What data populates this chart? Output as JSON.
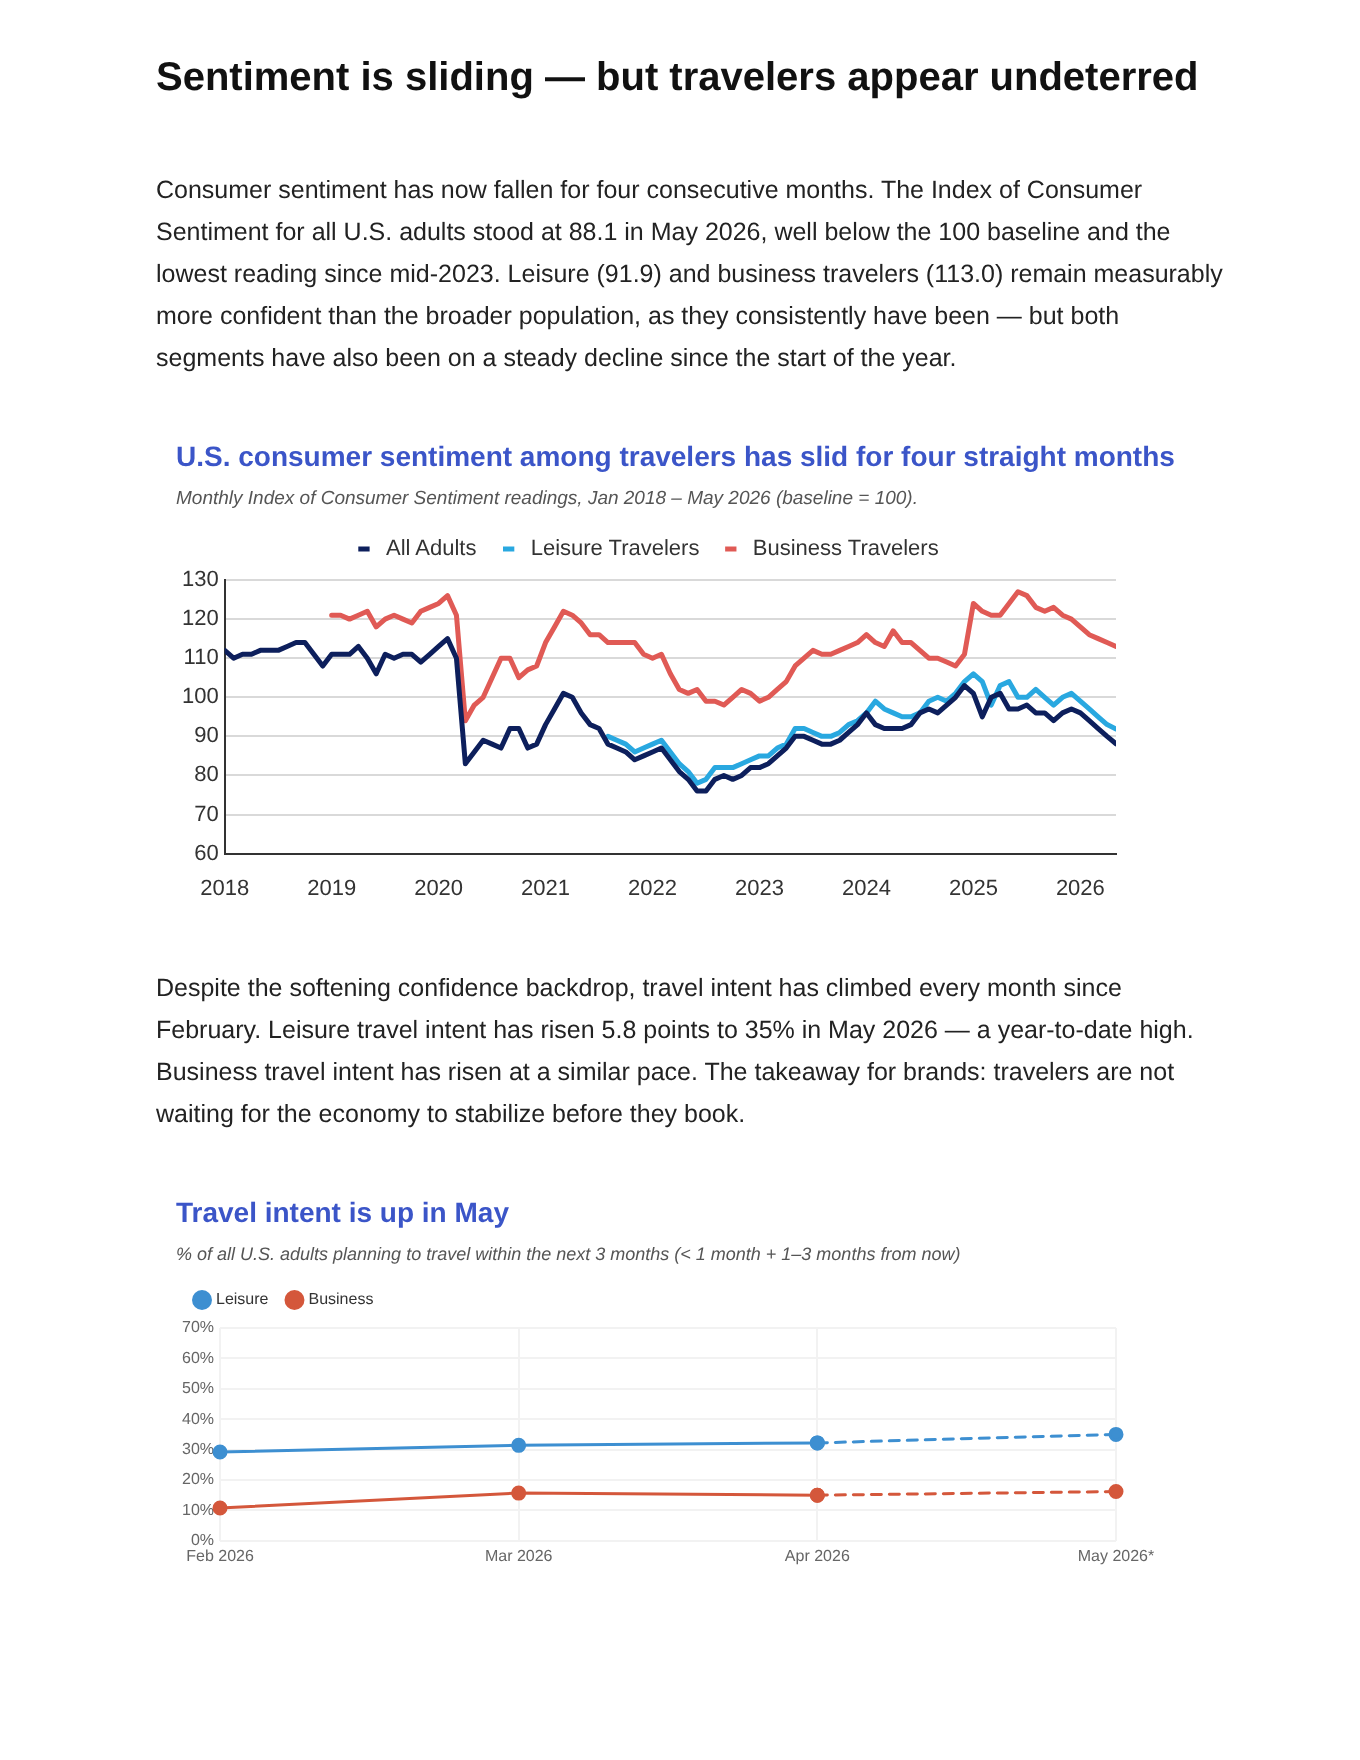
{
  "chart_data": [
    {
      "type": "line",
      "annotations": [
        "Sentiment is sliding — but travelers appear undeterred",
        "Consumer sentiment has now fallen for four consecutive months. The Index of Consumer Sentiment for all U.S. adults stood at 88.1 in May 2026, well below the 100 baseline and the lowest reading since mid-2023. Leisure (91.9) and business travelers (113.0) remain measurably more confident than the broader population, as they consistently have been — but both segments have also been on a steady decline since the start of the year."
      ],
      "title": "U.S. consumer sentiment among travelers has slid for four straight months",
      "subtitle": "Monthly Index of Consumer Sentiment readings, Jan 2018 – May 2026 (baseline = 100).",
      "x": [
        "2018-01",
        "2018-02",
        "2018-03",
        "2018-04",
        "2018-05",
        "2018-06",
        "2018-07",
        "2018-08",
        "2018-09",
        "2018-10",
        "2018-11",
        "2018-12",
        "2019-01",
        "2019-02",
        "2019-03",
        "2019-04",
        "2019-05",
        "2019-06",
        "2019-07",
        "2019-08",
        "2019-09",
        "2019-10",
        "2019-11",
        "2019-12",
        "2020-01",
        "2020-02",
        "2020-03",
        "2020-04",
        "2020-05",
        "2020-06",
        "2020-07",
        "2020-08",
        "2020-09",
        "2020-10",
        "2020-11",
        "2020-12",
        "2021-01",
        "2021-02",
        "2021-03",
        "2021-04",
        "2021-05",
        "2021-06",
        "2021-07",
        "2021-08",
        "2021-09",
        "2021-10",
        "2021-11",
        "2021-12",
        "2022-01",
        "2022-02",
        "2022-03",
        "2022-04",
        "2022-05",
        "2022-06",
        "2022-07",
        "2022-08",
        "2022-09",
        "2022-10",
        "2022-11",
        "2022-12",
        "2023-01",
        "2023-02",
        "2023-03",
        "2023-04",
        "2023-05",
        "2023-06",
        "2023-07",
        "2023-08",
        "2023-09",
        "2023-10",
        "2023-11",
        "2023-12",
        "2024-01",
        "2024-02",
        "2024-03",
        "2024-04",
        "2024-05",
        "2024-06",
        "2024-07",
        "2024-08",
        "2024-09",
        "2024-10",
        "2024-11",
        "2024-12",
        "2025-01",
        "2025-02",
        "2025-03",
        "2025-04",
        "2025-05",
        "2025-06",
        "2025-07",
        "2025-08",
        "2025-09",
        "2025-10",
        "2025-11",
        "2025-12",
        "2026-01",
        "2026-02",
        "2026-03",
        "2026-04",
        "2026-05"
      ],
      "series": [
        {
          "name": "All Adults",
          "color": "#0d1f5c",
          "values": [
            112,
            110,
            111,
            111,
            112,
            112,
            112,
            113,
            114,
            114,
            111,
            108,
            111,
            111,
            111,
            113,
            110,
            106,
            111,
            110,
            111,
            111,
            109,
            111,
            113,
            115,
            110,
            83,
            86,
            89,
            88,
            87,
            92,
            92,
            87,
            88,
            93,
            97,
            101,
            100,
            96,
            93,
            92,
            88,
            87,
            86,
            84,
            85,
            86,
            87,
            84,
            81,
            79,
            76,
            76,
            79,
            80,
            79,
            80,
            82,
            82,
            83,
            85,
            87,
            90,
            90,
            89,
            88,
            88,
            89,
            91,
            93,
            96,
            93,
            92,
            92,
            92,
            93,
            96,
            97,
            96,
            98,
            100,
            103,
            101,
            95,
            100,
            101,
            97,
            97,
            98,
            96,
            96,
            94,
            96,
            97,
            96,
            94,
            92,
            90,
            88.1
          ]
        },
        {
          "name": "Leisure Travelers",
          "color": "#29a8e0",
          "values": [
            null,
            null,
            null,
            null,
            null,
            null,
            null,
            null,
            null,
            null,
            null,
            null,
            null,
            null,
            null,
            null,
            null,
            null,
            null,
            null,
            null,
            null,
            null,
            null,
            null,
            null,
            null,
            null,
            null,
            null,
            null,
            null,
            null,
            null,
            null,
            null,
            null,
            null,
            null,
            null,
            null,
            null,
            null,
            90,
            89,
            88,
            86,
            87,
            88,
            89,
            86,
            83,
            81,
            78,
            79,
            82,
            82,
            82,
            83,
            84,
            85,
            85,
            87,
            88,
            92,
            92,
            91,
            90,
            90,
            91,
            93,
            94,
            96,
            99,
            97,
            96,
            95,
            95,
            96,
            99,
            100,
            99,
            101,
            104,
            106,
            104,
            98,
            103,
            104,
            100,
            100,
            102,
            100,
            98,
            100,
            101,
            99,
            97,
            95,
            93,
            91.9
          ]
        },
        {
          "name": "Business Travelers",
          "color": "#e05a55",
          "values": [
            null,
            null,
            null,
            null,
            null,
            null,
            null,
            null,
            null,
            null,
            null,
            null,
            121,
            121,
            120,
            121,
            122,
            118,
            120,
            121,
            120,
            119,
            122,
            123,
            124,
            126,
            121,
            94,
            98,
            100,
            105,
            110,
            110,
            105,
            107,
            108,
            114,
            118,
            122,
            121,
            119,
            116,
            116,
            114,
            114,
            114,
            114,
            111,
            110,
            111,
            106,
            102,
            101,
            102,
            99,
            99,
            98,
            100,
            102,
            101,
            99,
            100,
            102,
            104,
            108,
            110,
            112,
            111,
            111,
            112,
            113,
            114,
            116,
            114,
            113,
            117,
            114,
            114,
            112,
            110,
            110,
            109,
            108,
            111,
            124,
            122,
            121,
            121,
            124,
            127,
            126,
            123,
            122,
            123,
            121,
            120,
            118,
            116,
            115,
            114,
            113.0
          ]
        }
      ],
      "xlim": [
        "2018-01",
        "2026-05"
      ],
      "xticks": [
        {
          "value": "2018-01",
          "label": "2018"
        },
        {
          "value": "2019-01",
          "label": "2019"
        },
        {
          "value": "2020-01",
          "label": "2020"
        },
        {
          "value": "2021-01",
          "label": "2021"
        },
        {
          "value": "2022-01",
          "label": "2022"
        },
        {
          "value": "2023-01",
          "label": "2023"
        },
        {
          "value": "2024-01",
          "label": "2024"
        },
        {
          "value": "2025-01",
          "label": "2025"
        },
        {
          "value": "2026-01",
          "label": "2026"
        }
      ],
      "ylim": [
        60,
        130
      ],
      "yticks": [
        60,
        70,
        80,
        90,
        100,
        110,
        120,
        130
      ],
      "grid": "y",
      "legend": "top",
      "marker": "none",
      "line_style": "solid"
    },
    {
      "type": "line",
      "annotations": [
        "Despite the softening confidence backdrop, travel intent has climbed every month since February. Leisure travel intent has risen 5.8 points to 35% in May 2026 — a year-to-date high. Business travel intent has risen at a similar pace. The takeaway for brands: travelers are not waiting for the economy to stabilize before they book."
      ],
      "title": "Travel intent is up in May",
      "subtitle": "% of all U.S. adults planning to travel within the next 3 months (< 1 month + 1–3 months from now)",
      "categories": [
        "Feb 2026",
        "Mar 2026",
        "Apr 2026",
        "May 2026*"
      ],
      "series": [
        {
          "name": "Leisure",
          "color": "#3d8fd1",
          "values": [
            29.2,
            31.4,
            32.2,
            null
          ]
        },
        {
          "name": "Business",
          "color": "#d4573b",
          "values": [
            10.8,
            15.7,
            15.0,
            null
          ]
        },
        {
          "color": "#3d8fd1",
          "values": [
            null,
            null,
            32.2,
            35
          ],
          "line_style": "dashed"
        },
        {
          "color": "#d4573b",
          "values": [
            null,
            null,
            15.0,
            16.2
          ],
          "line_style": "dashed"
        }
      ],
      "ylim": [
        0,
        70
      ],
      "yticks": [
        {
          "value": 0,
          "label": "0%"
        },
        {
          "value": 10,
          "label": "10%"
        },
        {
          "value": 20,
          "label": "20%"
        },
        {
          "value": 30,
          "label": "30%"
        },
        {
          "value": 40,
          "label": "40%"
        },
        {
          "value": 50,
          "label": "50%"
        },
        {
          "value": 60,
          "label": "60%"
        },
        {
          "value": 70,
          "label": "70%"
        }
      ],
      "grid": true,
      "legend": "top left",
      "marker": "circle",
      "line_style": "solid"
    }
  ]
}
